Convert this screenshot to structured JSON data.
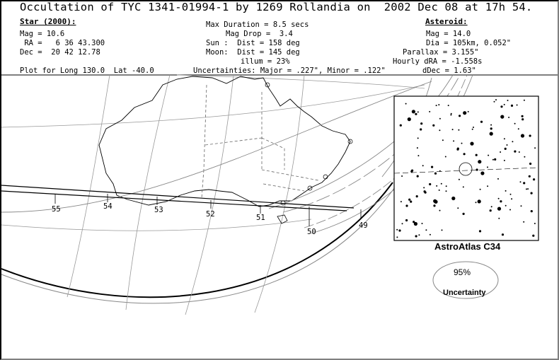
{
  "title": "Occultation of TYC 1341-01994-1 by 1269 Rollandia on  2002 Dec 08 at 17h 54.",
  "star": {
    "heading": "Star (2000):",
    "mag": "Mag = 10.6",
    "ra": " RA =   6 36 43.300",
    "dec": "Dec =  20 42 12.78"
  },
  "event": {
    "max_duration": "Max Duration = 8.5 secs",
    "mag_drop": "Mag Drop =  3.4",
    "sun": "Sun :  Dist = 158 deg",
    "moon": "Moon:  Dist = 145 deg",
    "illum": "illum = 23%"
  },
  "asteroid": {
    "heading": "Asteroid:",
    "mag": "Mag = 14.0",
    "dia": "Dia = 105km, 0.052\"",
    "parallax": "Parallax = 3.155\"",
    "hourly_dra": "Hourly dRA = -1.558s",
    "ddec": "dDec = 1.63\""
  },
  "plot_for": "Plot for Long 130.0  Lat -40.0",
  "uncertainties": "Uncertainties: Major = .227\", Minor = .122\"",
  "path_time_labels": [
    "55",
    "54",
    "53",
    "52",
    "51",
    "50",
    "49"
  ],
  "star_chart": {
    "caption": "AstroAtlas C34"
  },
  "uncertainty_ellipse": {
    "percent": "95%",
    "label": "Uncertainty"
  },
  "colors": {
    "ink": "#000000",
    "map_lines": "#888888",
    "background": "#ffffff"
  }
}
